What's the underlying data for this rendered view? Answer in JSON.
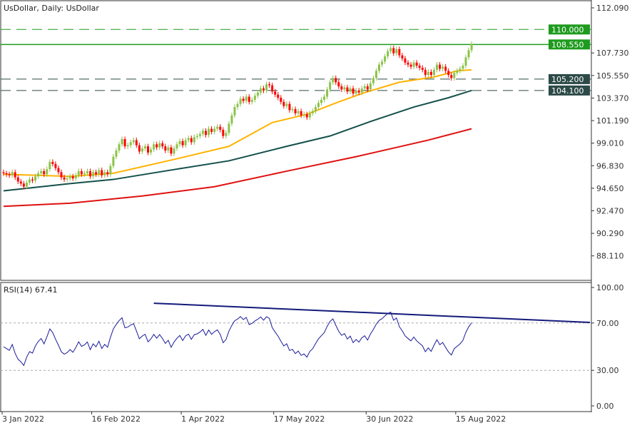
{
  "chart_data": {
    "type": "candlestick",
    "title": "UsDollar, Daily:  UsDollar",
    "x_tick_labels": [
      {
        "bar": 0,
        "label": "3 Jan 2022"
      },
      {
        "bar": 31,
        "label": "16 Feb 2022"
      },
      {
        "bar": 62,
        "label": "1 Apr 2022"
      },
      {
        "bar": 94,
        "label": "17 May 2022"
      },
      {
        "bar": 126,
        "label": "30 Jun 2022"
      },
      {
        "bar": 157,
        "label": "15 Aug 2022"
      }
    ],
    "y_tick_labels": [
      "112.090",
      "107.730",
      "105.550",
      "103.370",
      "101.190",
      "99.010",
      "96.830",
      "94.650",
      "92.470",
      "90.290",
      "88.110"
    ],
    "ylim": [
      86.9,
      112.8
    ],
    "grid": false,
    "closes": [
      96.1,
      96.0,
      95.9,
      96.2,
      95.7,
      95.3,
      95.1,
      94.8,
      95.2,
      95.5,
      95.4,
      95.8,
      96.1,
      96.3,
      96.0,
      96.5,
      97.2,
      97.0,
      96.6,
      96.2,
      95.7,
      95.5,
      95.6,
      95.8,
      95.6,
      95.9,
      96.3,
      96.0,
      96.1,
      96.3,
      95.8,
      96.2,
      96.0,
      96.4,
      95.9,
      96.2,
      96.0,
      96.8,
      97.7,
      98.3,
      98.9,
      99.4,
      98.7,
      98.8,
      99.1,
      99.3,
      98.8,
      98.2,
      98.5,
      98.7,
      98.1,
      98.4,
      98.9,
      98.6,
      99.0,
      98.7,
      98.3,
      98.6,
      98.0,
      98.5,
      98.9,
      99.2,
      98.8,
      99.3,
      99.5,
      99.1,
      99.6,
      99.7,
      99.9,
      100.2,
      99.8,
      100.4,
      100.1,
      100.4,
      100.6,
      100.3,
      99.7,
      100.0,
      100.9,
      101.7,
      102.5,
      102.8,
      103.3,
      103.1,
      103.5,
      103.0,
      103.2,
      103.6,
      103.9,
      104.3,
      104.1,
      104.7,
      104.6,
      104.0,
      103.7,
      103.4,
      103.0,
      102.6,
      102.8,
      102.2,
      102.3,
      101.9,
      102.1,
      101.7,
      101.8,
      101.5,
      101.9,
      102.1,
      102.5,
      102.9,
      103.2,
      103.5,
      104.2,
      104.9,
      105.3,
      104.9,
      104.5,
      104.2,
      104.4,
      104.0,
      104.3,
      103.8,
      104.1,
      103.9,
      104.3,
      104.5,
      104.2,
      104.8,
      105.3,
      106.0,
      106.6,
      106.9,
      107.4,
      107.9,
      108.2,
      107.7,
      108.1,
      107.5,
      107.2,
      106.8,
      106.6,
      106.4,
      106.8,
      106.5,
      106.3,
      106.1,
      105.6,
      105.9,
      105.6,
      106.1,
      106.6,
      106.2,
      106.4,
      106.0,
      105.6,
      105.3,
      105.8,
      106.0,
      106.2,
      106.5,
      107.3,
      108.0,
      108.6
    ],
    "moving_averages": [
      {
        "color": "#ffb300",
        "points": [
          [
            0,
            96.0
          ],
          [
            23,
            95.8
          ],
          [
            38,
            96.1
          ],
          [
            60,
            97.5
          ],
          [
            78,
            98.7
          ],
          [
            93,
            101.0
          ],
          [
            105,
            101.8
          ],
          [
            116,
            103.0
          ],
          [
            125,
            103.9
          ],
          [
            137,
            104.9
          ],
          [
            149,
            105.4
          ],
          [
            157,
            106.0
          ],
          [
            162,
            106.1
          ]
        ]
      },
      {
        "color": "#13504a",
        "points": [
          [
            0,
            94.4
          ],
          [
            23,
            95.1
          ],
          [
            38,
            95.5
          ],
          [
            60,
            96.5
          ],
          [
            78,
            97.3
          ],
          [
            98,
            98.7
          ],
          [
            113,
            99.7
          ],
          [
            127,
            101.1
          ],
          [
            142,
            102.5
          ],
          [
            154,
            103.4
          ],
          [
            162,
            104.1
          ]
        ]
      },
      {
        "color": "#e01010",
        "points": [
          [
            0,
            92.9
          ],
          [
            23,
            93.2
          ],
          [
            48,
            93.9
          ],
          [
            73,
            94.8
          ],
          [
            98,
            96.3
          ],
          [
            122,
            97.7
          ],
          [
            147,
            99.3
          ],
          [
            162,
            100.4
          ]
        ]
      }
    ],
    "levels": [
      {
        "value": 110.0,
        "label": "110.000",
        "color": "#1e9b1e",
        "style": "dashed"
      },
      {
        "value": 108.55,
        "label": "108.550",
        "color": "#1e9b1e",
        "style": "solid"
      },
      {
        "value": 105.2,
        "label": "105.200",
        "color": "#2c4a48",
        "style": "dashed"
      },
      {
        "value": 104.1,
        "label": "104.100",
        "color": "#2c4a48",
        "style": "dashed"
      }
    ],
    "bull_color": "#8bc34a",
    "bear_color": "#ff0000",
    "rsi": {
      "label": "RSI(14) 67.41",
      "period": 14,
      "value": 67.41,
      "y_tick_labels": [
        "100.00",
        "70.00",
        "30.00",
        "0.00"
      ],
      "levels": [
        70,
        30
      ],
      "line_color": "#1a1a9a",
      "trendline": {
        "from": [
          52,
          86.7
        ],
        "to": [
          203,
          70.5
        ],
        "color": "#141a7a"
      }
    }
  }
}
